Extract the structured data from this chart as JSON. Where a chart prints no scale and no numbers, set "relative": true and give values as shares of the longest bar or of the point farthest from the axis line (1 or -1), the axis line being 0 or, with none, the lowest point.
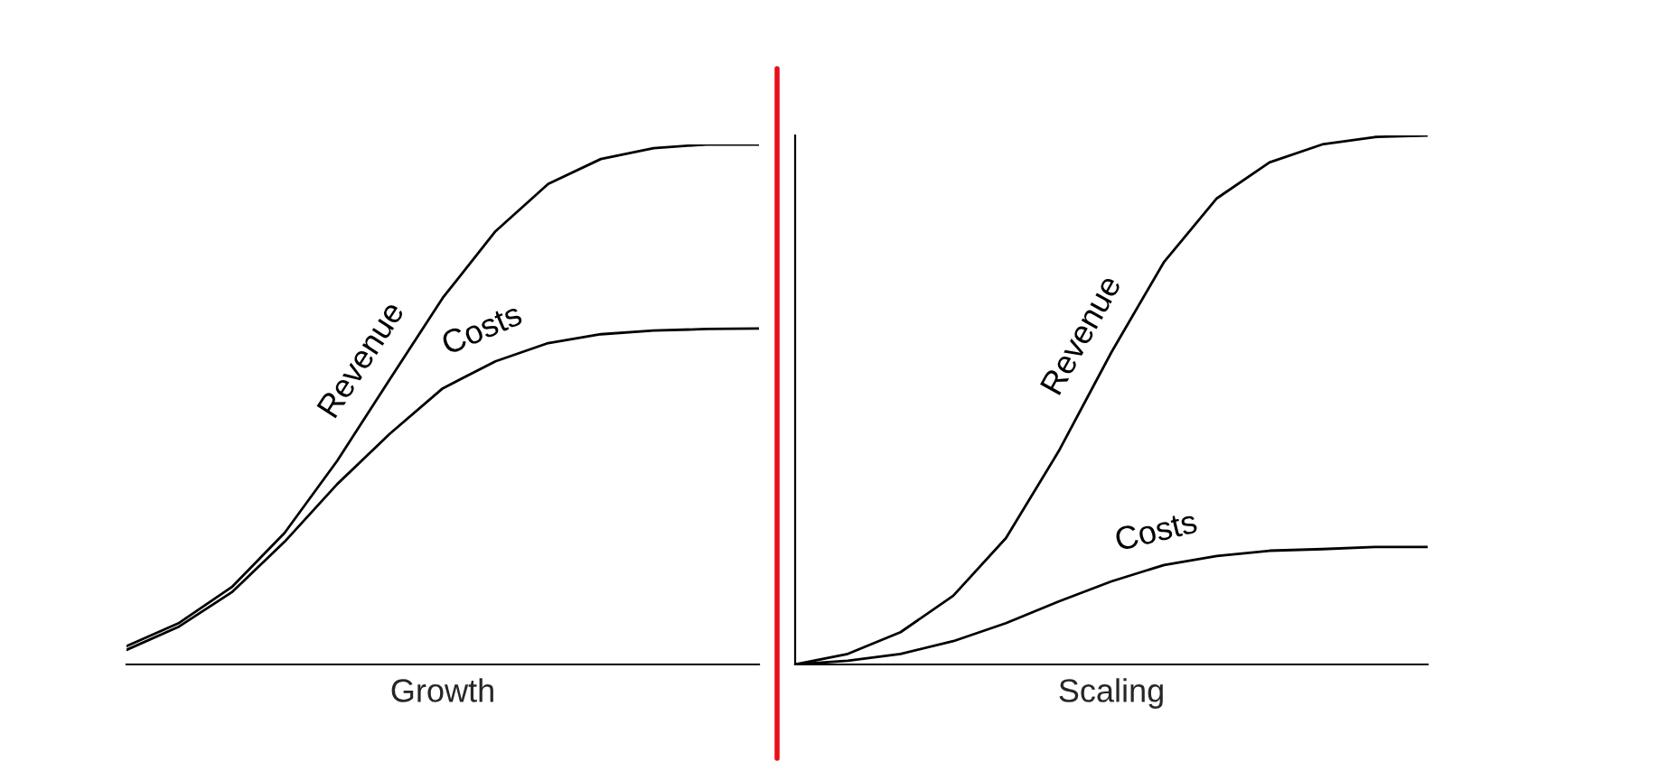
{
  "chart_data": [
    {
      "type": "line",
      "relative": true,
      "xlabel": "Growth",
      "categories": [
        null,
        null,
        null,
        null,
        null,
        null,
        null,
        null,
        null,
        null,
        null,
        null,
        null
      ],
      "legend": false,
      "grid": false,
      "series": [
        {
          "name": "Revenue",
          "color": "#000000",
          "values": [
            0.035,
            0.08,
            0.149,
            0.253,
            0.392,
            0.549,
            0.705,
            0.833,
            0.924,
            0.972,
            0.993,
            1,
            1
          ]
        },
        {
          "name": "Costs",
          "color": "#000000",
          "values": [
            0.028,
            0.073,
            0.139,
            0.236,
            0.347,
            0.444,
            0.531,
            0.583,
            0.618,
            0.635,
            0.642,
            0.645,
            0.646
          ]
        }
      ]
    },
    {
      "type": "line",
      "relative": true,
      "xlabel": "Scaling",
      "categories": [
        null,
        null,
        null,
        null,
        null,
        null,
        null,
        null,
        null,
        null,
        null,
        null,
        null
      ],
      "legend": false,
      "grid": false,
      "series": [
        {
          "name": "Revenue",
          "color": "#000000",
          "values": [
            0,
            0.02,
            0.061,
            0.13,
            0.239,
            0.403,
            0.59,
            0.761,
            0.881,
            0.949,
            0.983,
            0.997,
            1
          ]
        },
        {
          "name": "Costs",
          "color": "#000000",
          "values": [
            0,
            0.007,
            0.02,
            0.044,
            0.078,
            0.119,
            0.157,
            0.188,
            0.205,
            0.215,
            0.218,
            0.222,
            0.222
          ]
        }
      ]
    }
  ]
}
